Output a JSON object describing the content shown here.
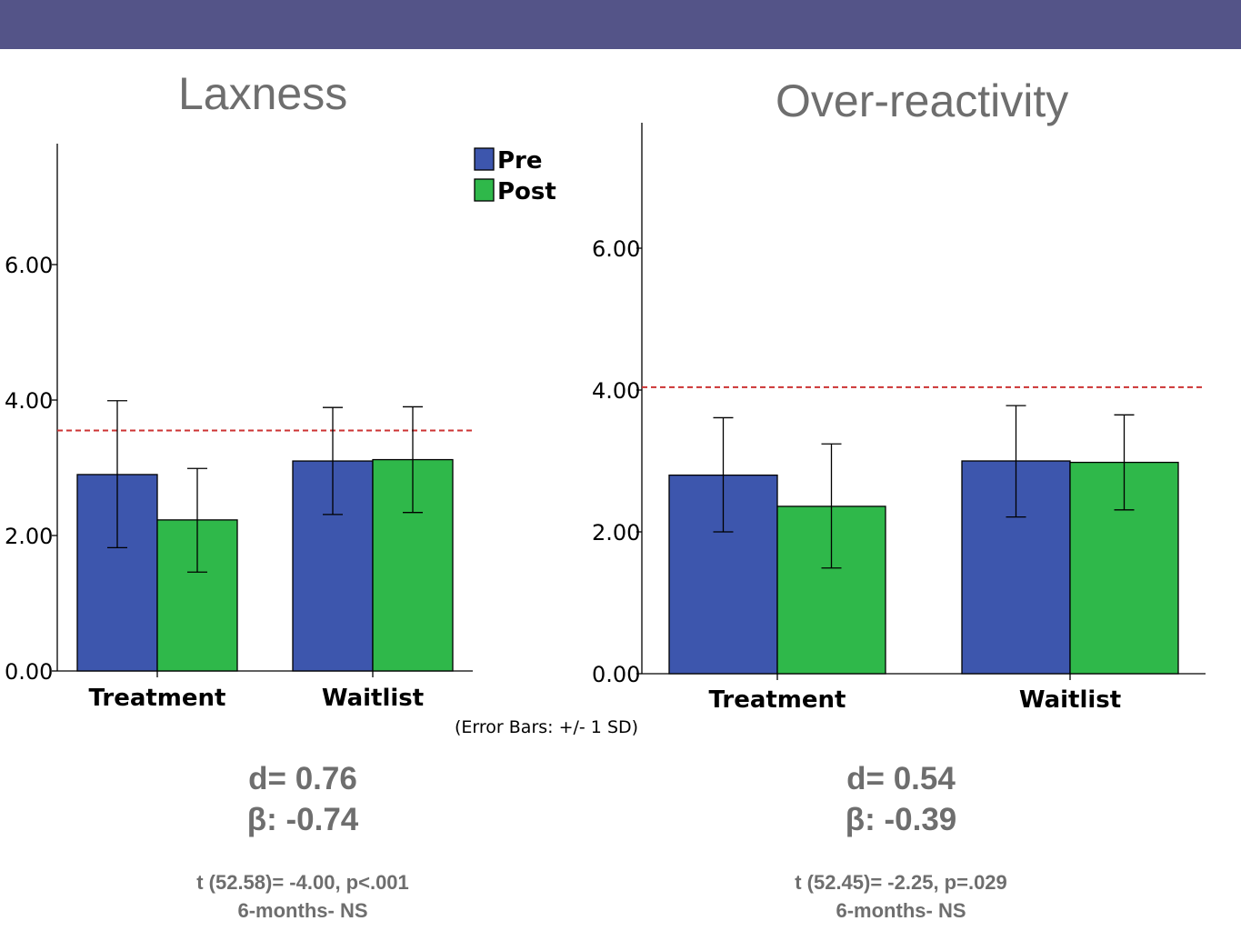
{
  "chart_data": [
    {
      "type": "bar",
      "title": "Laxness",
      "categories": [
        "Treatment",
        "Waitlist"
      ],
      "series": [
        {
          "name": "Pre",
          "values": [
            2.9,
            3.1
          ],
          "error_low": [
            1.82,
            2.31
          ],
          "error_high": [
            3.99,
            3.89
          ]
        },
        {
          "name": "Post",
          "values": [
            2.23,
            3.12
          ],
          "error_low": [
            1.46,
            2.34
          ],
          "error_high": [
            2.99,
            3.9
          ]
        }
      ],
      "ylim": [
        0,
        7.8
      ],
      "yticks": [
        "0.00",
        "2.00",
        "4.00",
        "6.00"
      ],
      "reference_line": 3.55,
      "legend": {
        "placement": "top-right",
        "entries": [
          "Pre",
          "Post"
        ]
      },
      "note": "(Error Bars: +/- 1 SD)",
      "stats": {
        "d": "d= 0.76",
        "beta": "β: -0.74",
        "t": "t (52.58)= -4.00, p<.001",
        "followup": "6-months- NS"
      }
    },
    {
      "type": "bar",
      "title": "Over-reactivity",
      "categories": [
        "Treatment",
        "Waitlist"
      ],
      "series": [
        {
          "name": "Pre",
          "values": [
            2.8,
            3.0
          ],
          "error_low": [
            2.0,
            2.21
          ],
          "error_high": [
            3.61,
            3.78
          ]
        },
        {
          "name": "Post",
          "values": [
            2.36,
            2.98
          ],
          "error_low": [
            1.49,
            2.31
          ],
          "error_high": [
            3.24,
            3.65
          ]
        }
      ],
      "ylim": [
        0,
        7.8
      ],
      "yticks": [
        "0.00",
        "2.00",
        "4.00",
        "6.00"
      ],
      "reference_line": 4.04,
      "stats": {
        "d": "d= 0.54",
        "beta": "β: -0.39",
        "t": "t (52.45)= -2.25, p=.029",
        "followup": "6-months- NS"
      }
    }
  ],
  "colors": {
    "pre": "#3d56ad",
    "post": "#2fb84a",
    "reference": "#cc3333",
    "header_bar": "#545488",
    "text": "#6e6e6e"
  }
}
